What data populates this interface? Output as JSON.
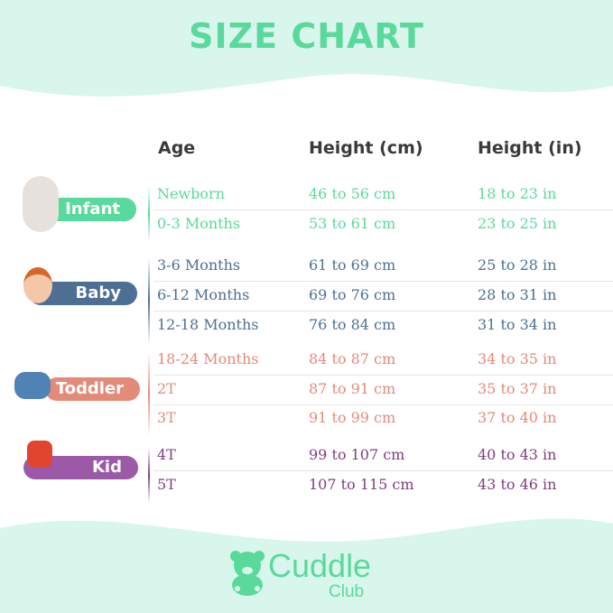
{
  "title": "SIZE CHART",
  "headers": [
    "Age",
    "Height (cm)",
    "Height (in)"
  ],
  "colors": {
    "infant": "#5ad99c",
    "baby": "#4d6f94",
    "toddler": "#e48a79",
    "kid": "#7e3f7e",
    "background": "#d9f6ec",
    "header": "#3a3a3a"
  },
  "groups": [
    {
      "label": "Infant",
      "rows": [
        [
          "Newborn",
          "46 to 56 cm",
          "18 to 23 in"
        ],
        [
          "0-3 Months",
          "53 to 61 cm",
          "23 to 25 in"
        ]
      ]
    },
    {
      "label": "Baby",
      "rows": [
        [
          "3-6 Months",
          "61 to 69 cm",
          "25 to 28 in"
        ],
        [
          "6-12 Months",
          "69 to 76 cm",
          "28 to 31 in"
        ],
        [
          "12-18 Months",
          "76 to 84 cm",
          "31 to 34 in"
        ]
      ]
    },
    {
      "label": "Toddler",
      "rows": [
        [
          "18-24 Months",
          "84 to 87 cm",
          "34 to 35 in"
        ],
        [
          "2T",
          "87 to 91 cm",
          "35 to 37 in"
        ],
        [
          "3T",
          "91 to 99 cm",
          "37 to 40 in"
        ]
      ]
    },
    {
      "label": "Kid",
      "rows": [
        [
          "4T",
          "99 to 107 cm",
          "40 to 43 in"
        ],
        [
          "5T",
          "107 to 115 cm",
          "43 to 46 in"
        ]
      ]
    }
  ],
  "brand": {
    "name": "Cuddle",
    "sub": "Club",
    "icon": "teddy-bear-icon"
  }
}
